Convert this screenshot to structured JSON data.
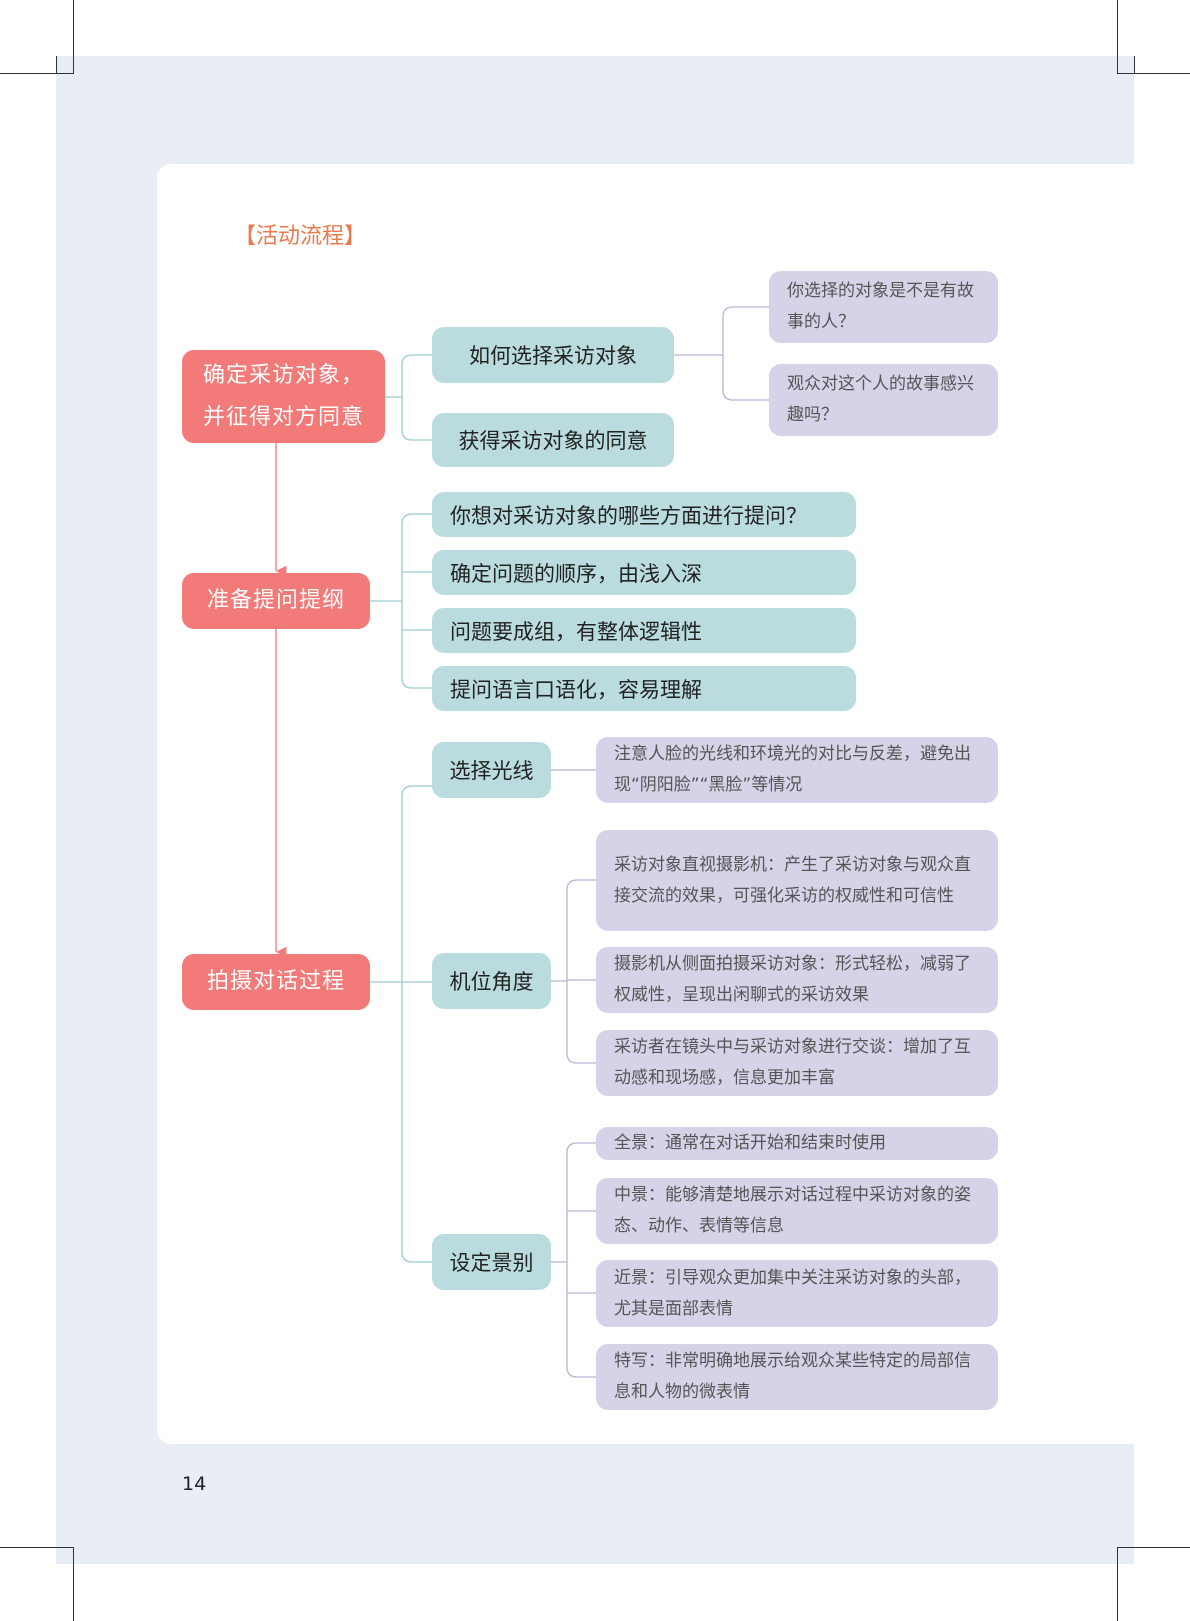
{
  "title": "【活动流程】",
  "page_number": "14",
  "colors": {
    "main_node": "#f27a78",
    "sub_node": "#badcdf",
    "detail_node": "#d6d2e8",
    "title": "#e87a4c",
    "panel": "#e9edf6"
  },
  "steps": [
    {
      "label": "确定采访对象，并征得对方同意",
      "branches": [
        {
          "label": "如何选择采访对象",
          "details": [
            "你选择的对象是不是有故事的人？",
            "观众对这个人的故事感兴趣吗？"
          ]
        },
        {
          "label": "获得采访对象的同意",
          "details": []
        }
      ]
    },
    {
      "label": "准备提问提纲",
      "branches": [
        {
          "label": "你想对采访对象的哪些方面进行提问？"
        },
        {
          "label": "确定问题的顺序，由浅入深"
        },
        {
          "label": "问题要成组，有整体逻辑性"
        },
        {
          "label": "提问语言口语化，容易理解"
        }
      ]
    },
    {
      "label": "拍摄对话过程",
      "branches": [
        {
          "label": "选择光线",
          "details": [
            "注意人脸的光线和环境光的对比与反差，避免出现“阴阳脸”“黑脸”等情况"
          ]
        },
        {
          "label": "机位角度",
          "details": [
            "采访对象直视摄影机：产生了采访对象与观众直接交流的效果，可强化采访的权威性和可信性",
            "摄影机从侧面拍摄采访对象：形式轻松，减弱了权威性，呈现出闲聊式的采访效果",
            "采访者在镜头中与采访对象进行交谈：增加了互动感和现场感，信息更加丰富"
          ]
        },
        {
          "label": "设定景别",
          "details": [
            "全景：通常在对话开始和结束时使用",
            "中景：能够清楚地展示对话过程中采访对象的姿态、动作、表情等信息",
            "近景：引导观众更加集中关注采访对象的头部，尤其是面部表情",
            "特写：非常明确地展示给观众某些特定的局部信息和人物的微表情"
          ]
        }
      ]
    }
  ]
}
